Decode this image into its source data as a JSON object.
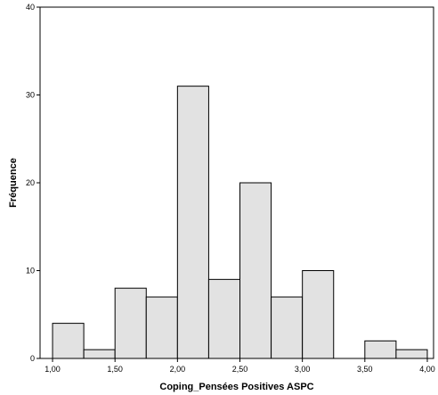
{
  "chart_data": {
    "type": "bar",
    "title": "",
    "xlabel": "Coping_Pensées Positives ASPC",
    "ylabel": "Fréquence",
    "bin_width": 0.25,
    "bins": [
      {
        "start": 1.0,
        "end": 1.25,
        "value": 4
      },
      {
        "start": 1.25,
        "end": 1.5,
        "value": 1
      },
      {
        "start": 1.5,
        "end": 1.75,
        "value": 8
      },
      {
        "start": 1.75,
        "end": 2.0,
        "value": 7
      },
      {
        "start": 2.0,
        "end": 2.25,
        "value": 31
      },
      {
        "start": 2.25,
        "end": 2.5,
        "value": 9
      },
      {
        "start": 2.5,
        "end": 2.75,
        "value": 20
      },
      {
        "start": 2.75,
        "end": 3.0,
        "value": 7
      },
      {
        "start": 3.0,
        "end": 3.25,
        "value": 10
      },
      {
        "start": 3.25,
        "end": 3.5,
        "value": 0
      },
      {
        "start": 3.5,
        "end": 3.75,
        "value": 2
      },
      {
        "start": 3.75,
        "end": 4.0,
        "value": 1
      }
    ],
    "xlim": [
      0.9,
      4.05
    ],
    "ylim": [
      0,
      40
    ],
    "x_ticks": [
      1.0,
      1.5,
      2.0,
      2.5,
      3.0,
      3.5,
      4.0
    ],
    "x_tick_labels": [
      "1,00",
      "1,50",
      "2,00",
      "2,50",
      "3,00",
      "3,50",
      "4,00"
    ],
    "y_ticks": [
      0,
      10,
      20,
      30,
      40
    ],
    "y_tick_labels": [
      "0",
      "10",
      "20",
      "30",
      "40"
    ],
    "grid": false,
    "legend": "none",
    "colors": {
      "bar_fill": "#e2e2e2",
      "bar_stroke": "#000000",
      "axis": "#000000",
      "background": "#ffffff"
    }
  }
}
